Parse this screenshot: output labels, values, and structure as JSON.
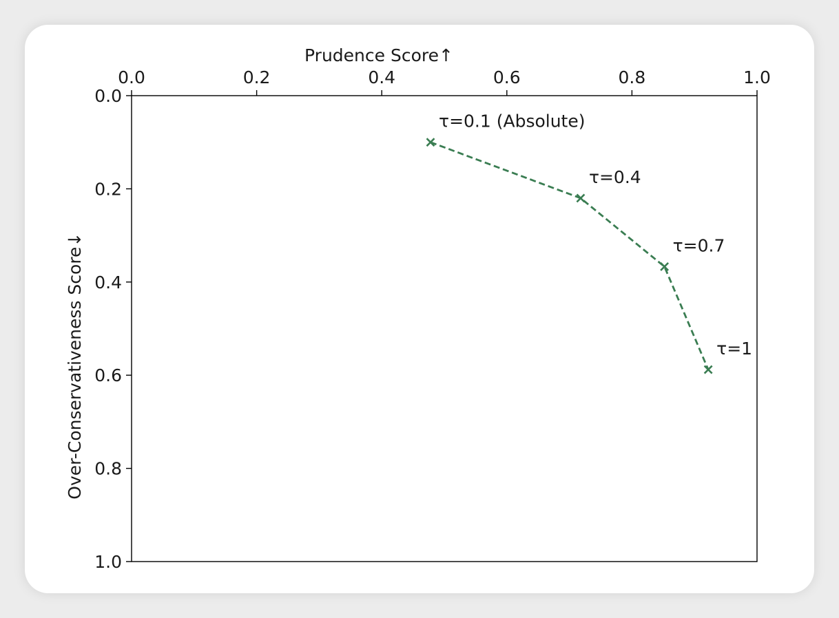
{
  "chart_data": {
    "type": "line",
    "title": "",
    "xlabel": "Prudence Score↑",
    "ylabel": "Over-Conservativeness Score↓",
    "xlim": [
      0.0,
      1.0
    ],
    "ylim": [
      0.0,
      1.0
    ],
    "y_inverted": true,
    "x_axis_position": "top",
    "grid": false,
    "x_ticks": [
      "0.0",
      "0.2",
      "0.4",
      "0.6",
      "0.8",
      "1.0"
    ],
    "y_ticks": [
      "0.0",
      "0.2",
      "0.4",
      "0.6",
      "0.8",
      "1.0"
    ],
    "series": [
      {
        "color": "#3a7d52",
        "line_style": "dashed",
        "marker": "x",
        "points": [
          {
            "x": 0.478,
            "y": 0.1,
            "label": "τ=0.1 (Absolute)"
          },
          {
            "x": 0.718,
            "y": 0.22,
            "label": "τ=0.4"
          },
          {
            "x": 0.852,
            "y": 0.367,
            "label": "τ=0.7"
          },
          {
            "x": 0.922,
            "y": 0.588,
            "label": "τ=1"
          }
        ]
      }
    ]
  }
}
